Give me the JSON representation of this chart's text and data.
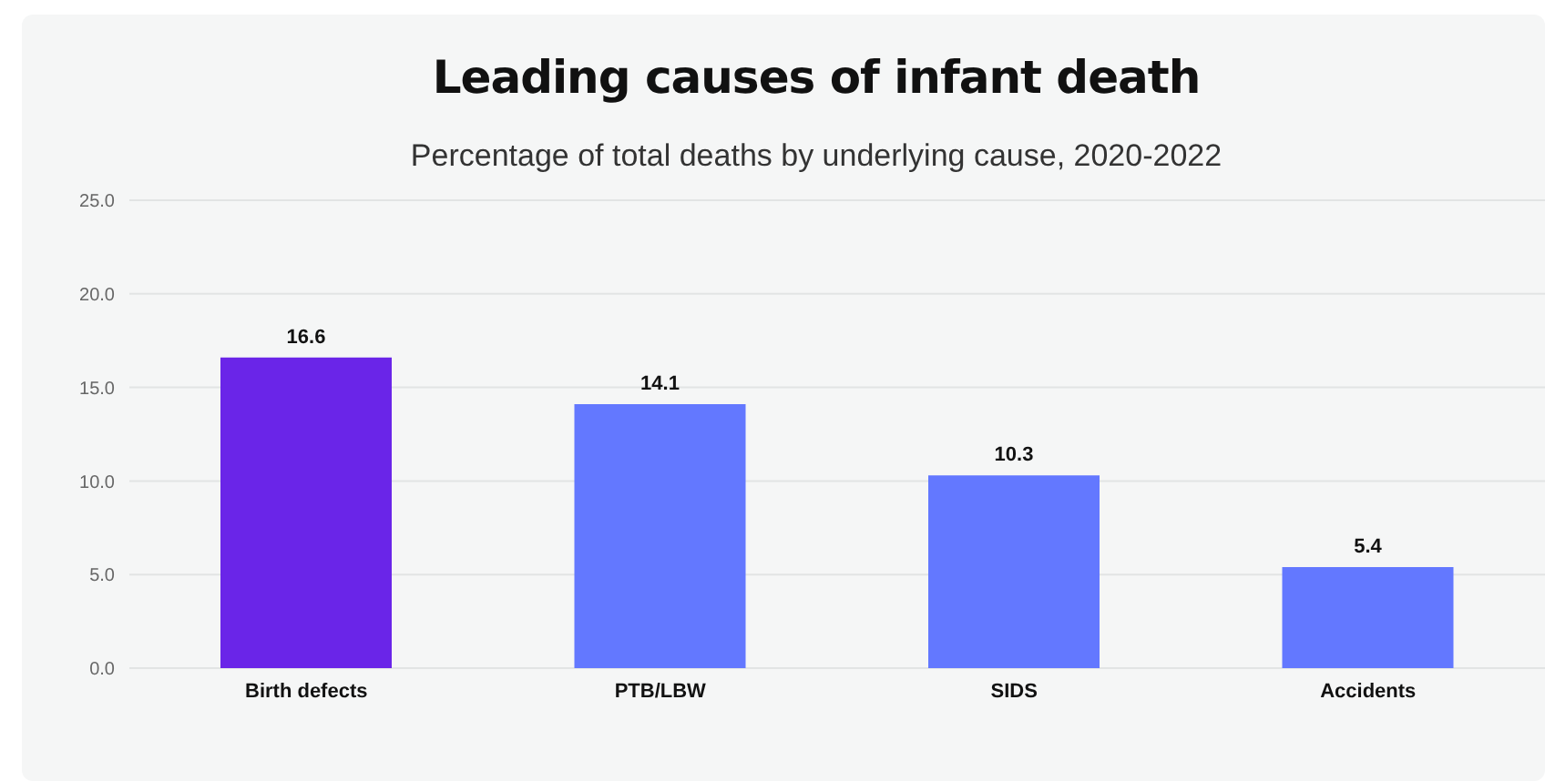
{
  "chart_data": {
    "type": "bar",
    "title": "Leading causes of infant death",
    "subtitle": "Percentage of total deaths by underlying cause, 2020-2022",
    "categories": [
      "Birth defects",
      "PTB/LBW",
      "SIDS",
      "Accidents"
    ],
    "values": [
      16.6,
      14.1,
      10.3,
      5.4
    ],
    "colors": [
      "#6a25e8",
      "#6378ff",
      "#6378ff",
      "#6378ff"
    ],
    "ylim": [
      0,
      25
    ],
    "yticks": [
      {
        "value": 0,
        "label": "0.0"
      },
      {
        "value": 5,
        "label": "5.0"
      },
      {
        "value": 10,
        "label": "10.0"
      },
      {
        "value": 15,
        "label": "15.0"
      },
      {
        "value": 20,
        "label": "20.0"
      },
      {
        "value": 25,
        "label": "25.0"
      }
    ],
    "grid": "y",
    "data_labels": true,
    "legend": false
  }
}
